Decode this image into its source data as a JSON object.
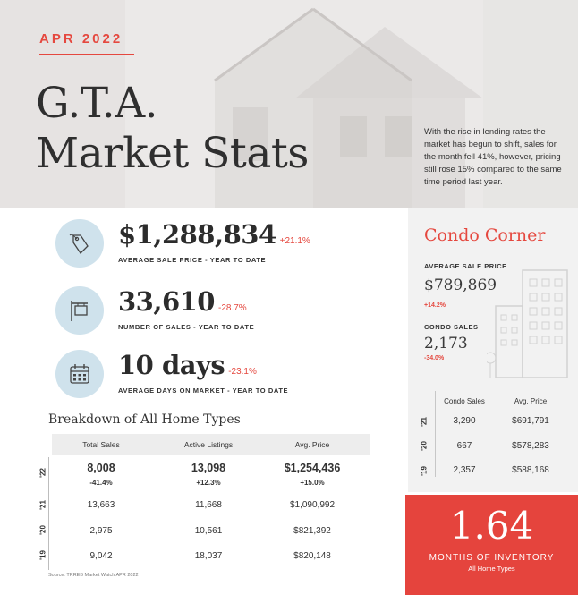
{
  "hero": {
    "month": "APR 2022",
    "title_line1": "G.T.A.",
    "title_line2": "Market Stats",
    "intro": "With the rise in lending rates the market has begun to shift, sales for the month fell 41%, however, pricing still rose 15% compared to the same time period last year."
  },
  "stats": [
    {
      "value": "$1,288,834",
      "change": "+21.1%",
      "label": "AVERAGE SALE PRICE - YEAR TO DATE",
      "icon": "price-tag-icon"
    },
    {
      "value": "33,610",
      "change": "-28.7%",
      "label": "NUMBER OF SALES - YEAR TO DATE",
      "icon": "sign-post-icon"
    },
    {
      "value": "10 days",
      "change": "-23.1%",
      "label": "AVERAGE DAYS ON MARKET - YEAR TO DATE",
      "icon": "calendar-icon"
    }
  ],
  "breakdown": {
    "title": "Breakdown of All Home Types",
    "headers": [
      "Total Sales",
      "Active Listings",
      "Avg. Price"
    ],
    "rows": [
      {
        "year": "'22",
        "cells": [
          "8,008",
          "13,098",
          "$1,254,436"
        ],
        "changes": [
          "-41.4%",
          "+12.3%",
          "+15.0%"
        ]
      },
      {
        "year": "'21",
        "cells": [
          "13,663",
          "11,668",
          "$1,090,992"
        ]
      },
      {
        "year": "'20",
        "cells": [
          "2,975",
          "10,561",
          "$821,392"
        ]
      },
      {
        "year": "'19",
        "cells": [
          "9,042",
          "18,037",
          "$820,148"
        ]
      }
    ],
    "source": "Source: TRREB Market Watch APR 2022"
  },
  "condo": {
    "title": "Condo Corner",
    "avg_label": "AVERAGE SALE PRICE",
    "avg_value": "$789,869",
    "avg_change": "+14.2%",
    "sales_label": "CONDO SALES",
    "sales_value": "2,173",
    "sales_change": "-34.0%",
    "headers": [
      "Condo Sales",
      "Avg. Price"
    ],
    "rows": [
      {
        "year": "'21",
        "cells": [
          "3,290",
          "$691,791"
        ]
      },
      {
        "year": "'20",
        "cells": [
          "667",
          "$578,283"
        ]
      },
      {
        "year": "'19",
        "cells": [
          "2,357",
          "$588,168"
        ]
      }
    ]
  },
  "inventory": {
    "value": "1.64",
    "label": "MONTHS OF INVENTORY",
    "sub": "All Home Types"
  },
  "colors": {
    "accent": "#e5483f",
    "icon_bg": "#cfe2ec",
    "panel": "#f2f2f2"
  }
}
